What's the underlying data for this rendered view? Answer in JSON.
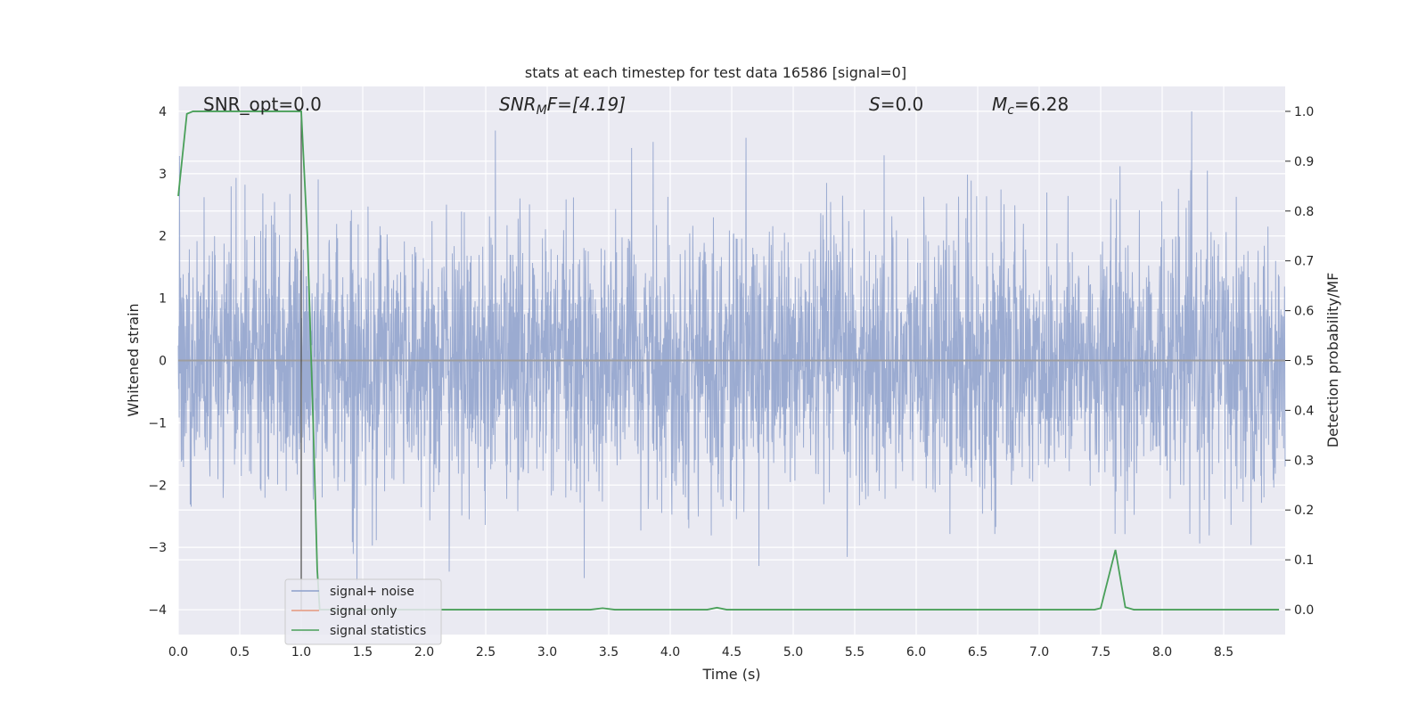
{
  "chart_data": {
    "type": "line",
    "title": "stats at each timestep for test data 16586 [signal=0]",
    "xlabel": "Time (s)",
    "ylabel_left": "Whitened strain",
    "ylabel_right": "Detection probability/MF",
    "xlim": [
      0.0,
      9.0
    ],
    "ylim_left": [
      -4.4,
      4.4
    ],
    "ylim_right": [
      -0.05,
      1.05
    ],
    "x_ticks": [
      "0.0",
      "0.5",
      "1.0",
      "1.5",
      "2.0",
      "2.5",
      "3.0",
      "3.5",
      "4.0",
      "4.5",
      "5.0",
      "5.5",
      "6.0",
      "6.5",
      "7.0",
      "7.5",
      "8.0",
      "8.5"
    ],
    "y_ticks_left": [
      "−4",
      "−3",
      "−2",
      "−1",
      "0",
      "1",
      "2",
      "3",
      "4"
    ],
    "y_ticks_right": [
      "0.0",
      "0.1",
      "0.2",
      "0.3",
      "0.4",
      "0.5",
      "0.6",
      "0.7",
      "0.8",
      "0.9",
      "1.0"
    ],
    "grid": true,
    "legend_position": "lower-left",
    "annotations": {
      "snr_opt": "SNR_opt=0.0",
      "snr_mf_main": "SNR",
      "snr_mf_sub": "M",
      "snr_mf_tail": "F=[4.19]",
      "s_main": "S",
      "s_tail": "=0.0",
      "mc_main": "M",
      "mc_sub": "c",
      "mc_tail": "=6.28"
    },
    "vline_x": 1.0,
    "series": [
      {
        "name": "signal+ noise",
        "axis": "left",
        "color": "#8da0cb",
        "description_only": "dense whitened noise, roughly N(0,1), peaks near ±4"
      },
      {
        "name": "signal only",
        "axis": "left",
        "color": "#e5977c",
        "values_note": "zero"
      },
      {
        "name": "signal statistics",
        "axis": "right",
        "color": "#4aa05a",
        "x": [
          0.0,
          0.07,
          0.12,
          0.3,
          0.5,
          0.7,
          0.9,
          0.98,
          1.0,
          1.05,
          1.1,
          1.13,
          1.15,
          1.2,
          1.5,
          2.0,
          2.5,
          3.0,
          3.35,
          3.45,
          3.55,
          4.0,
          4.3,
          4.38,
          4.46,
          5.0,
          6.0,
          7.0,
          7.45,
          7.5,
          7.62,
          7.7,
          7.77,
          8.0,
          8.5,
          8.95
        ],
        "y": [
          0.83,
          0.995,
          1.0,
          1.0,
          1.0,
          1.0,
          1.0,
          1.0,
          1.0,
          0.75,
          0.35,
          0.08,
          0.0,
          0.0,
          0.0,
          0.0,
          0.0,
          0.0,
          0.0,
          0.003,
          0.0,
          0.0,
          0.0,
          0.004,
          0.0,
          0.0,
          0.0,
          0.0,
          0.0,
          0.003,
          0.12,
          0.005,
          0.0,
          0.0,
          0.0,
          0.0
        ]
      }
    ]
  }
}
